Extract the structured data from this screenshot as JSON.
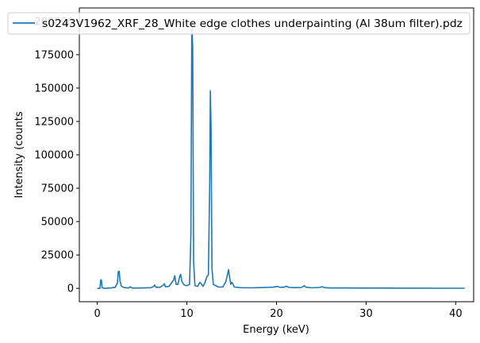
{
  "chart_data": {
    "type": "line",
    "title": "",
    "xlabel": "Energy (keV)",
    "ylabel": "Intensity (counts",
    "xlim": [
      -2,
      42
    ],
    "ylim": [
      -10000,
      210000
    ],
    "xticks": [
      0,
      10,
      20,
      30,
      40
    ],
    "yticks": [
      0,
      25000,
      50000,
      75000,
      100000,
      125000,
      150000,
      175000,
      200000
    ],
    "grid": false,
    "legend_position": "top-right",
    "series": [
      {
        "name": "s0243V1962_XRF_28_White edge clothes underpainting (Al 38um filter).pdz",
        "color": "#1f77b4",
        "points": [
          [
            0.0,
            0
          ],
          [
            0.3,
            0
          ],
          [
            0.38,
            6000
          ],
          [
            0.45,
            6500
          ],
          [
            0.55,
            500
          ],
          [
            0.8,
            0
          ],
          [
            1.5,
            300
          ],
          [
            2.0,
            800
          ],
          [
            2.25,
            4000
          ],
          [
            2.35,
            12500
          ],
          [
            2.45,
            12800
          ],
          [
            2.55,
            5000
          ],
          [
            2.7,
            1500
          ],
          [
            3.0,
            600
          ],
          [
            3.5,
            300
          ],
          [
            3.7,
            1200
          ],
          [
            3.9,
            200
          ],
          [
            5.0,
            300
          ],
          [
            6.0,
            500
          ],
          [
            6.3,
            1500
          ],
          [
            6.4,
            2500
          ],
          [
            6.55,
            800
          ],
          [
            7.0,
            800
          ],
          [
            7.4,
            2500
          ],
          [
            7.5,
            3500
          ],
          [
            7.6,
            1200
          ],
          [
            8.0,
            1500
          ],
          [
            8.5,
            6000
          ],
          [
            8.65,
            9500
          ],
          [
            8.8,
            3000
          ],
          [
            9.0,
            3000
          ],
          [
            9.2,
            9000
          ],
          [
            9.3,
            10500
          ],
          [
            9.45,
            5000
          ],
          [
            9.7,
            2500
          ],
          [
            10.0,
            2000
          ],
          [
            10.3,
            3000
          ],
          [
            10.45,
            40000
          ],
          [
            10.55,
            200000
          ],
          [
            10.65,
            180000
          ],
          [
            10.75,
            20000
          ],
          [
            10.9,
            2000
          ],
          [
            11.2,
            1500
          ],
          [
            11.45,
            4500
          ],
          [
            11.6,
            3500
          ],
          [
            11.8,
            1500
          ],
          [
            12.0,
            4000
          ],
          [
            12.25,
            9000
          ],
          [
            12.4,
            10000
          ],
          [
            12.55,
            80000
          ],
          [
            12.62,
            148000
          ],
          [
            12.7,
            120000
          ],
          [
            12.8,
            15000
          ],
          [
            12.95,
            3000
          ],
          [
            13.5,
            1000
          ],
          [
            14.0,
            1000
          ],
          [
            14.35,
            5000
          ],
          [
            14.55,
            11000
          ],
          [
            14.65,
            14000
          ],
          [
            14.75,
            9000
          ],
          [
            14.9,
            3000
          ],
          [
            15.0,
            4500
          ],
          [
            15.1,
            3800
          ],
          [
            15.3,
            1000
          ],
          [
            16.0,
            500
          ],
          [
            17.0,
            400
          ],
          [
            18.0,
            500
          ],
          [
            19.0,
            700
          ],
          [
            19.6,
            900
          ],
          [
            20.1,
            1500
          ],
          [
            20.3,
            900
          ],
          [
            20.8,
            800
          ],
          [
            21.1,
            1600
          ],
          [
            21.4,
            700
          ],
          [
            22.0,
            500
          ],
          [
            22.8,
            700
          ],
          [
            23.1,
            2000
          ],
          [
            23.3,
            800
          ],
          [
            24.0,
            400
          ],
          [
            24.8,
            700
          ],
          [
            25.1,
            1200
          ],
          [
            25.4,
            500
          ],
          [
            26.0,
            300
          ],
          [
            28.0,
            300
          ],
          [
            30.0,
            200
          ],
          [
            32.0,
            200
          ],
          [
            35.0,
            150
          ],
          [
            38.0,
            100
          ],
          [
            41.0,
            100
          ]
        ]
      }
    ]
  }
}
